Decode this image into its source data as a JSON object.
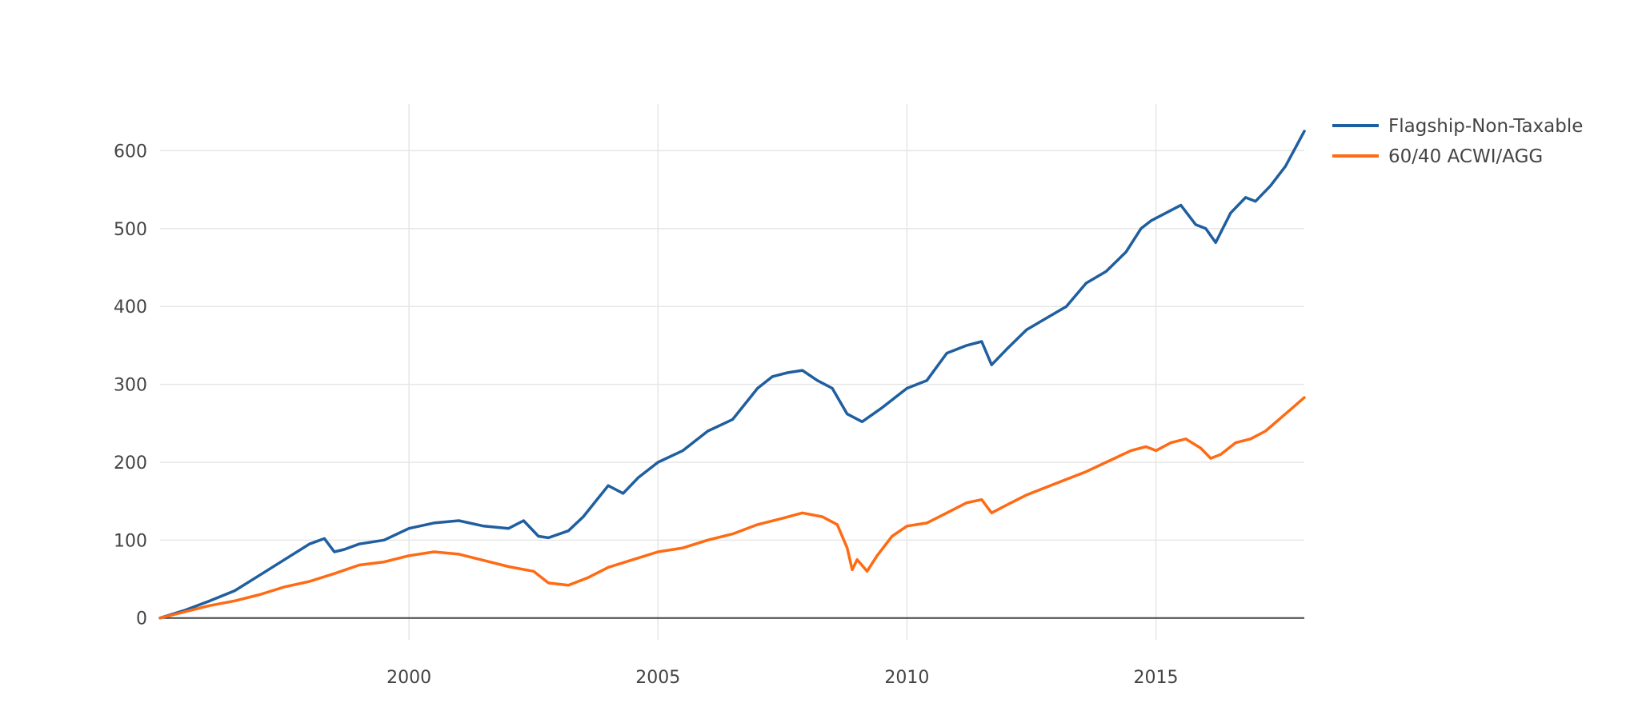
{
  "chart_data": {
    "type": "line",
    "title": "",
    "xlabel": "",
    "ylabel": "",
    "xlim": [
      1995,
      2017.98
    ],
    "ylim": [
      -28,
      660
    ],
    "grid": true,
    "legend_position": "top-right",
    "x_ticks": [
      2000,
      2005,
      2010,
      2015
    ],
    "x_tick_labels": [
      "2000",
      "2005",
      "2010",
      "2015"
    ],
    "y_ticks": [
      0,
      100,
      200,
      300,
      400,
      500,
      600
    ],
    "y_tick_labels": [
      "0",
      "100",
      "200",
      "300",
      "400",
      "500",
      "600"
    ],
    "series": [
      {
        "name": "Flagship-Non-Taxable",
        "color": "#1f5f9f",
        "x": [
          1995.0,
          1995.5,
          1996.0,
          1996.5,
          1997.0,
          1997.5,
          1998.0,
          1998.3,
          1998.5,
          1998.7,
          1999.0,
          1999.5,
          2000.0,
          2000.5,
          2001.0,
          2001.5,
          2002.0,
          2002.3,
          2002.6,
          2002.8,
          2003.2,
          2003.5,
          2004.0,
          2004.3,
          2004.6,
          2005.0,
          2005.5,
          2006.0,
          2006.5,
          2007.0,
          2007.3,
          2007.6,
          2007.9,
          2008.2,
          2008.5,
          2008.8,
          2009.1,
          2009.5,
          2010.0,
          2010.4,
          2010.8,
          2011.2,
          2011.5,
          2011.7,
          2012.0,
          2012.4,
          2012.8,
          2013.2,
          2013.6,
          2014.0,
          2014.4,
          2014.7,
          2014.9,
          2015.2,
          2015.5,
          2015.8,
          2016.0,
          2016.2,
          2016.5,
          2016.8,
          2017.0,
          2017.3,
          2017.6,
          2017.98
        ],
        "values": [
          0,
          10,
          22,
          35,
          55,
          75,
          95,
          102,
          85,
          88,
          95,
          100,
          115,
          122,
          125,
          118,
          115,
          125,
          105,
          103,
          112,
          130,
          170,
          160,
          180,
          200,
          215,
          240,
          255,
          295,
          310,
          315,
          318,
          305,
          295,
          262,
          252,
          270,
          295,
          305,
          340,
          350,
          355,
          325,
          345,
          370,
          385,
          400,
          430,
          445,
          470,
          500,
          510,
          520,
          530,
          505,
          500,
          482,
          520,
          540,
          535,
          555,
          580,
          625
        ]
      },
      {
        "name": "60/40 ACWI/AGG",
        "color": "#ff6a13",
        "x": [
          1995.0,
          1995.5,
          1996.0,
          1996.5,
          1997.0,
          1997.5,
          1998.0,
          1998.5,
          1999.0,
          1999.5,
          2000.0,
          2000.5,
          2001.0,
          2001.5,
          2002.0,
          2002.5,
          2002.8,
          2003.2,
          2003.6,
          2004.0,
          2004.5,
          2005.0,
          2005.5,
          2006.0,
          2006.5,
          2007.0,
          2007.5,
          2007.9,
          2008.3,
          2008.6,
          2008.8,
          2008.9,
          2009.0,
          2009.2,
          2009.4,
          2009.7,
          2010.0,
          2010.4,
          2010.8,
          2011.2,
          2011.5,
          2011.7,
          2012.0,
          2012.4,
          2012.8,
          2013.2,
          2013.6,
          2014.0,
          2014.5,
          2014.8,
          2015.0,
          2015.3,
          2015.6,
          2015.9,
          2016.1,
          2016.3,
          2016.6,
          2016.9,
          2017.2,
          2017.6,
          2017.98
        ],
        "values": [
          0,
          8,
          16,
          22,
          30,
          40,
          47,
          57,
          68,
          72,
          80,
          85,
          82,
          74,
          66,
          60,
          45,
          42,
          52,
          65,
          75,
          85,
          90,
          100,
          108,
          120,
          128,
          135,
          130,
          120,
          90,
          62,
          75,
          60,
          80,
          105,
          118,
          122,
          135,
          148,
          152,
          135,
          145,
          158,
          168,
          178,
          188,
          200,
          215,
          220,
          215,
          225,
          230,
          218,
          205,
          210,
          225,
          230,
          240,
          262,
          283
        ]
      }
    ]
  }
}
